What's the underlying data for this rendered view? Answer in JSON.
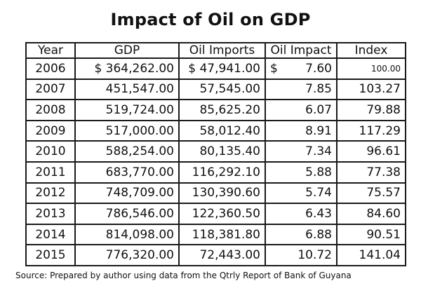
{
  "title": "Impact of Oil on GDP",
  "table": {
    "headers": [
      "Year",
      "GDP",
      "Oil Imports",
      "Oil Impact",
      "Index"
    ],
    "rows": [
      [
        "2006",
        "$ 364,262.00",
        "$ 47,941.00",
        "$",
        "7.60",
        "100.00"
      ],
      [
        "2007",
        "451,547.00",
        "57,545.00",
        "",
        "7.85",
        "103.27"
      ],
      [
        "2008",
        "519,724.00",
        "85,625.20",
        "",
        "6.07",
        "79.88"
      ],
      [
        "2009",
        "517,000.00",
        "58,012.40",
        "",
        "8.91",
        "117.29"
      ],
      [
        "2010",
        "588,254.00",
        "80,135.40",
        "",
        "7.34",
        "96.61"
      ],
      [
        "2011",
        "683,770.00",
        "116,292.10",
        "",
        "5.88",
        "77.38"
      ],
      [
        "2012",
        "748,709.00",
        "130,390.60",
        "",
        "5.74",
        "75.57"
      ],
      [
        "2013",
        "786,546.00",
        "122,360.50",
        "",
        "6.43",
        "84.60"
      ],
      [
        "2014",
        "814,098.00",
        "118,381.80",
        "",
        "6.88",
        "90.51"
      ],
      [
        "2015",
        "776,320.00",
        "72,443.00",
        "",
        "10.72",
        "141.04"
      ]
    ]
  },
  "source": "Source: Prepared by author using data from the Qtrly Report of Bank of Guyana"
}
